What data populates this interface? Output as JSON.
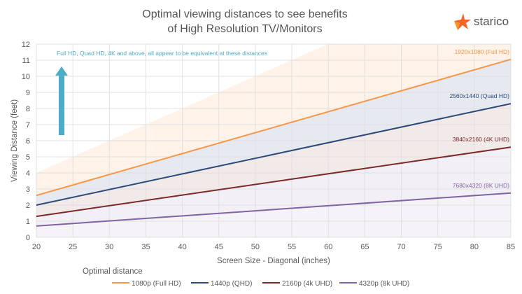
{
  "logo": {
    "text": "starico"
  },
  "chart_data": {
    "type": "line",
    "title": "Optimal viewing distances to see benefits of High Resolution TV/Monitors",
    "title_lines": [
      "Optimal viewing distances to see benefits",
      "of High Resolution TV/Monitors"
    ],
    "xlabel": "Screen Size - Diagonal (inches)",
    "ylabel": "Viewing Distance (feet)",
    "xlim": [
      20,
      85
    ],
    "ylim": [
      0,
      12
    ],
    "xticks": [
      20,
      25,
      30,
      35,
      40,
      45,
      50,
      55,
      60,
      65,
      70,
      75,
      80,
      85
    ],
    "yticks": [
      0,
      1,
      2,
      3,
      4,
      5,
      6,
      7,
      8,
      9,
      10,
      11,
      12
    ],
    "grid": true,
    "legend_title": "Optimal distance",
    "legend_position": "bottom",
    "annotation": "Full HD, Quad HD, 4K and above, all appear to be equivalent at these distances",
    "x": [
      20,
      85
    ],
    "series": [
      {
        "name": "1080p (Full HD)",
        "label": "1920x1080 (Full HD)",
        "color": "#f79646",
        "values": [
          2.6,
          11.05
        ]
      },
      {
        "name": "1440p (QHD)",
        "label": "2560x1440 (Quad HD)",
        "color": "#2e4a7a",
        "values": [
          2.0,
          8.3
        ]
      },
      {
        "name": "2160p (4k UHD)",
        "label": "3840x2160 (4K UHD)",
        "color": "#7b2a2a",
        "values": [
          1.3,
          5.6
        ]
      },
      {
        "name": "4320p (8k UHD)",
        "label": "7680x4320 (8K UHD)",
        "color": "#8064a2",
        "values": [
          0.7,
          2.75
        ]
      }
    ],
    "arrow_color": "#4bacc6"
  }
}
